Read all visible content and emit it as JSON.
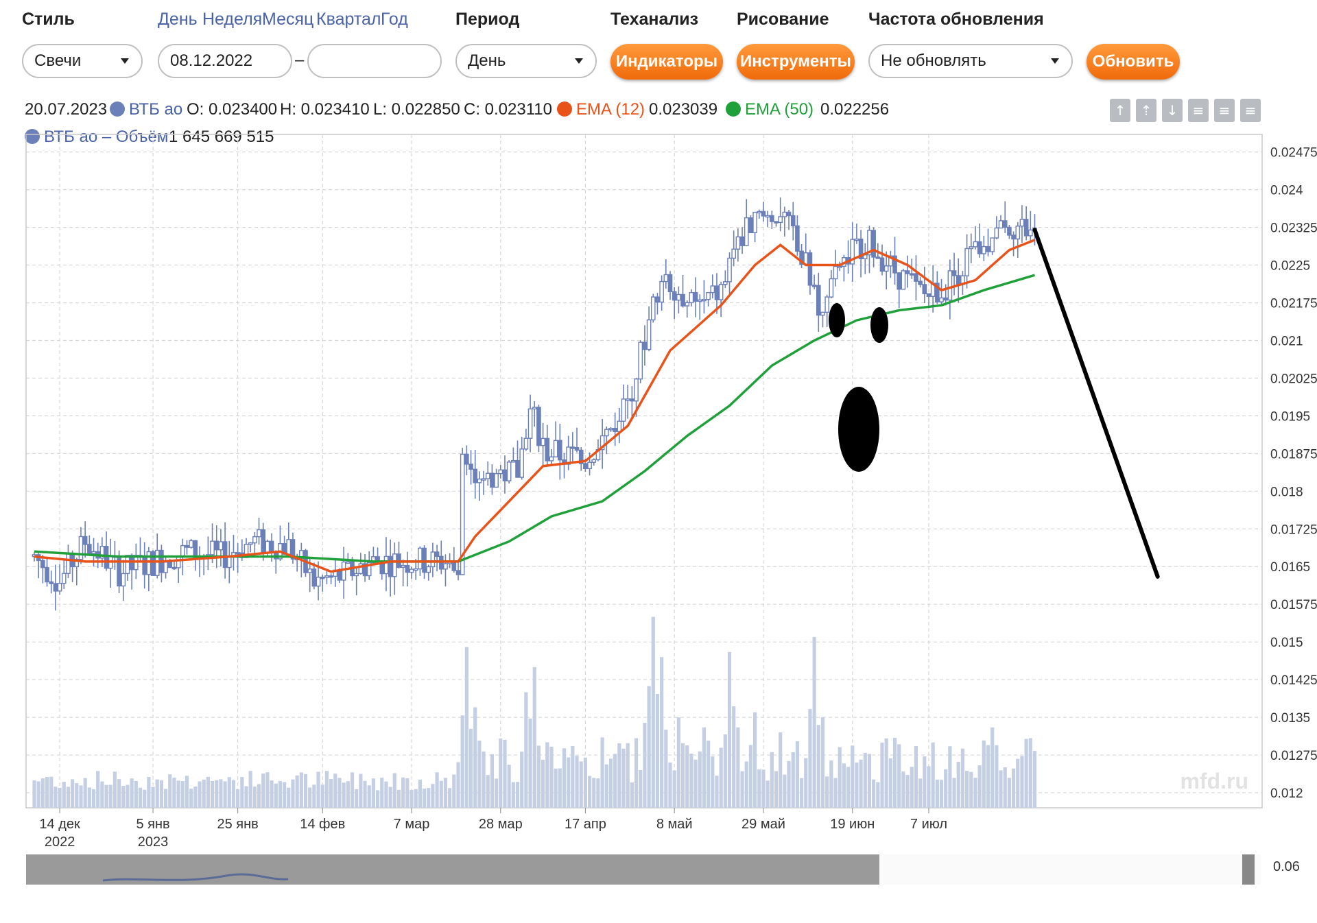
{
  "toolbar": {
    "style_label": "Стиль",
    "style_value": "Свечи",
    "periods": [
      "День",
      "Неделя",
      "Месяц",
      "Квартал",
      "Год"
    ],
    "date_from": "08.12.2022",
    "date_to": "",
    "date_sep": "–",
    "period_label": "Период",
    "period_value": "День",
    "ta_label": "Теханализ",
    "indicators_button": "Индикаторы",
    "drawing_label": "Рисование",
    "tools_button": "Инструменты",
    "refresh_label": "Частота обновления",
    "refresh_value": "Не обновлять",
    "update_button": "Обновить"
  },
  "info": {
    "date": "20.07.2023",
    "ticker": "ВТБ ао",
    "open": "O: 0.023400",
    "high": "H: 0.023410",
    "low": "L: 0.022850",
    "close": "C: 0.023110",
    "ema12_label": "EMA (12)",
    "ema12_value": "0.023039",
    "ema50_label": "EMA (50)",
    "ema50_value": "0.022256",
    "volume_label": "ВТБ ао – Объём",
    "volume_value": "1 645 669 515"
  },
  "colors": {
    "candle": "#6b7fb8",
    "volume": "#c5cfe4",
    "ema12": "#e8531a",
    "ema50": "#20a03a",
    "grid": "#d7d7d7",
    "ticker_dot": "#6b7fb8",
    "ema12_dot": "#e8531a",
    "ema50_dot": "#20a03a",
    "orange_button": "#f47a1f"
  },
  "tool_icons": [
    "arrow-up-icon",
    "arrow-up-bar-icon",
    "download-icon",
    "lines-icon",
    "lines-icon",
    "lines-icon"
  ],
  "watermark": "mfd.ru",
  "navigator_label": "0.06",
  "chart_data": {
    "type": "candlestick",
    "y_ticks": [
      "0.02475",
      "0.024",
      "0.02325",
      "0.0225",
      "0.02175",
      "0.021",
      "0.02025",
      "0.0195",
      "0.01875",
      "0.018",
      "0.01725",
      "0.0165",
      "0.01575",
      "0.015",
      "0.01425",
      "0.0135",
      "0.01275",
      "0.012"
    ],
    "x_ticks": [
      {
        "day": 6,
        "label": "14 дек",
        "label2": "2022"
      },
      {
        "day": 28,
        "label": "5 янв",
        "label2": "2023"
      },
      {
        "day": 48,
        "label": "25 янв",
        "label2": ""
      },
      {
        "day": 68,
        "label": "14 фев",
        "label2": ""
      },
      {
        "day": 89,
        "label": "7 мар",
        "label2": ""
      },
      {
        "day": 110,
        "label": "28 мар",
        "label2": ""
      },
      {
        "day": 130,
        "label": "17 апр",
        "label2": ""
      },
      {
        "day": 151,
        "label": "8 май",
        "label2": ""
      },
      {
        "day": 172,
        "label": "29 май",
        "label2": ""
      },
      {
        "day": 193,
        "label": "19 июн",
        "label2": ""
      },
      {
        "day": 211,
        "label": "7 июл",
        "label2": ""
      }
    ],
    "ylim": [
      0.0117,
      0.0251
    ],
    "day_range": [
      0,
      287
    ],
    "price_path": [
      [
        0,
        0.0167
      ],
      [
        6,
        0.0162
      ],
      [
        12,
        0.017
      ],
      [
        20,
        0.0164
      ],
      [
        28,
        0.0166
      ],
      [
        36,
        0.0168
      ],
      [
        44,
        0.0167
      ],
      [
        52,
        0.017
      ],
      [
        60,
        0.0169
      ],
      [
        66,
        0.0162
      ],
      [
        72,
        0.0163
      ],
      [
        80,
        0.0166
      ],
      [
        90,
        0.0166
      ],
      [
        100,
        0.0166
      ],
      [
        101,
        0.0186
      ],
      [
        106,
        0.0183
      ],
      [
        114,
        0.0184
      ],
      [
        117,
        0.0196
      ],
      [
        121,
        0.0188
      ],
      [
        130,
        0.0186
      ],
      [
        140,
        0.0197
      ],
      [
        148,
        0.0224
      ],
      [
        156,
        0.0216
      ],
      [
        162,
        0.022
      ],
      [
        168,
        0.0233
      ],
      [
        176,
        0.0236
      ],
      [
        182,
        0.0225
      ],
      [
        186,
        0.0215
      ],
      [
        190,
        0.0225
      ],
      [
        196,
        0.023
      ],
      [
        204,
        0.0223
      ],
      [
        210,
        0.0219
      ],
      [
        214,
        0.022
      ],
      [
        222,
        0.0228
      ],
      [
        230,
        0.0233
      ],
      [
        236,
        0.0232
      ]
    ],
    "ema12_path": [
      [
        0,
        0.0167
      ],
      [
        12,
        0.0166
      ],
      [
        20,
        0.0166
      ],
      [
        30,
        0.0166
      ],
      [
        46,
        0.0167
      ],
      [
        58,
        0.0168
      ],
      [
        70,
        0.0164
      ],
      [
        84,
        0.0166
      ],
      [
        100,
        0.0166
      ],
      [
        104,
        0.0171
      ],
      [
        112,
        0.0178
      ],
      [
        120,
        0.0185
      ],
      [
        130,
        0.0186
      ],
      [
        140,
        0.0193
      ],
      [
        150,
        0.0208
      ],
      [
        162,
        0.0217
      ],
      [
        170,
        0.0225
      ],
      [
        176,
        0.0229
      ],
      [
        182,
        0.0225
      ],
      [
        190,
        0.0225
      ],
      [
        198,
        0.0228
      ],
      [
        206,
        0.0225
      ],
      [
        214,
        0.022
      ],
      [
        222,
        0.0222
      ],
      [
        230,
        0.0228
      ],
      [
        236,
        0.023
      ]
    ],
    "ema50_path": [
      [
        0,
        0.0168
      ],
      [
        20,
        0.0167
      ],
      [
        40,
        0.0167
      ],
      [
        60,
        0.0167
      ],
      [
        80,
        0.0166
      ],
      [
        100,
        0.0166
      ],
      [
        112,
        0.017
      ],
      [
        122,
        0.0175
      ],
      [
        134,
        0.0178
      ],
      [
        144,
        0.0184
      ],
      [
        154,
        0.0191
      ],
      [
        164,
        0.0197
      ],
      [
        174,
        0.0205
      ],
      [
        184,
        0.021
      ],
      [
        194,
        0.0214
      ],
      [
        204,
        0.0216
      ],
      [
        214,
        0.0217
      ],
      [
        224,
        0.022
      ],
      [
        236,
        0.0223
      ]
    ],
    "volume_spikes": [
      [
        102,
        0.0149
      ],
      [
        104,
        0.0137
      ],
      [
        116,
        0.014
      ],
      [
        118,
        0.0145
      ],
      [
        130,
        0.0127
      ],
      [
        134,
        0.0131
      ],
      [
        146,
        0.0155
      ],
      [
        148,
        0.0147
      ],
      [
        152,
        0.0135
      ],
      [
        158,
        0.0133
      ],
      [
        164,
        0.0148
      ],
      [
        166,
        0.0133
      ],
      [
        170,
        0.0136
      ],
      [
        176,
        0.0132
      ],
      [
        184,
        0.0151
      ],
      [
        186,
        0.0135
      ],
      [
        194,
        0.0126
      ],
      [
        212,
        0.013
      ],
      [
        226,
        0.0133
      ]
    ],
    "annotation_line": {
      "from": [
        236,
        0.0232
      ],
      "to": [
        265,
        0.0163
      ]
    },
    "series": [
      {
        "name": "ВТБ ао"
      },
      {
        "name": "EMA (12)"
      },
      {
        "name": "EMA (50)"
      },
      {
        "name": "ВТБ ао – Объём"
      }
    ]
  }
}
